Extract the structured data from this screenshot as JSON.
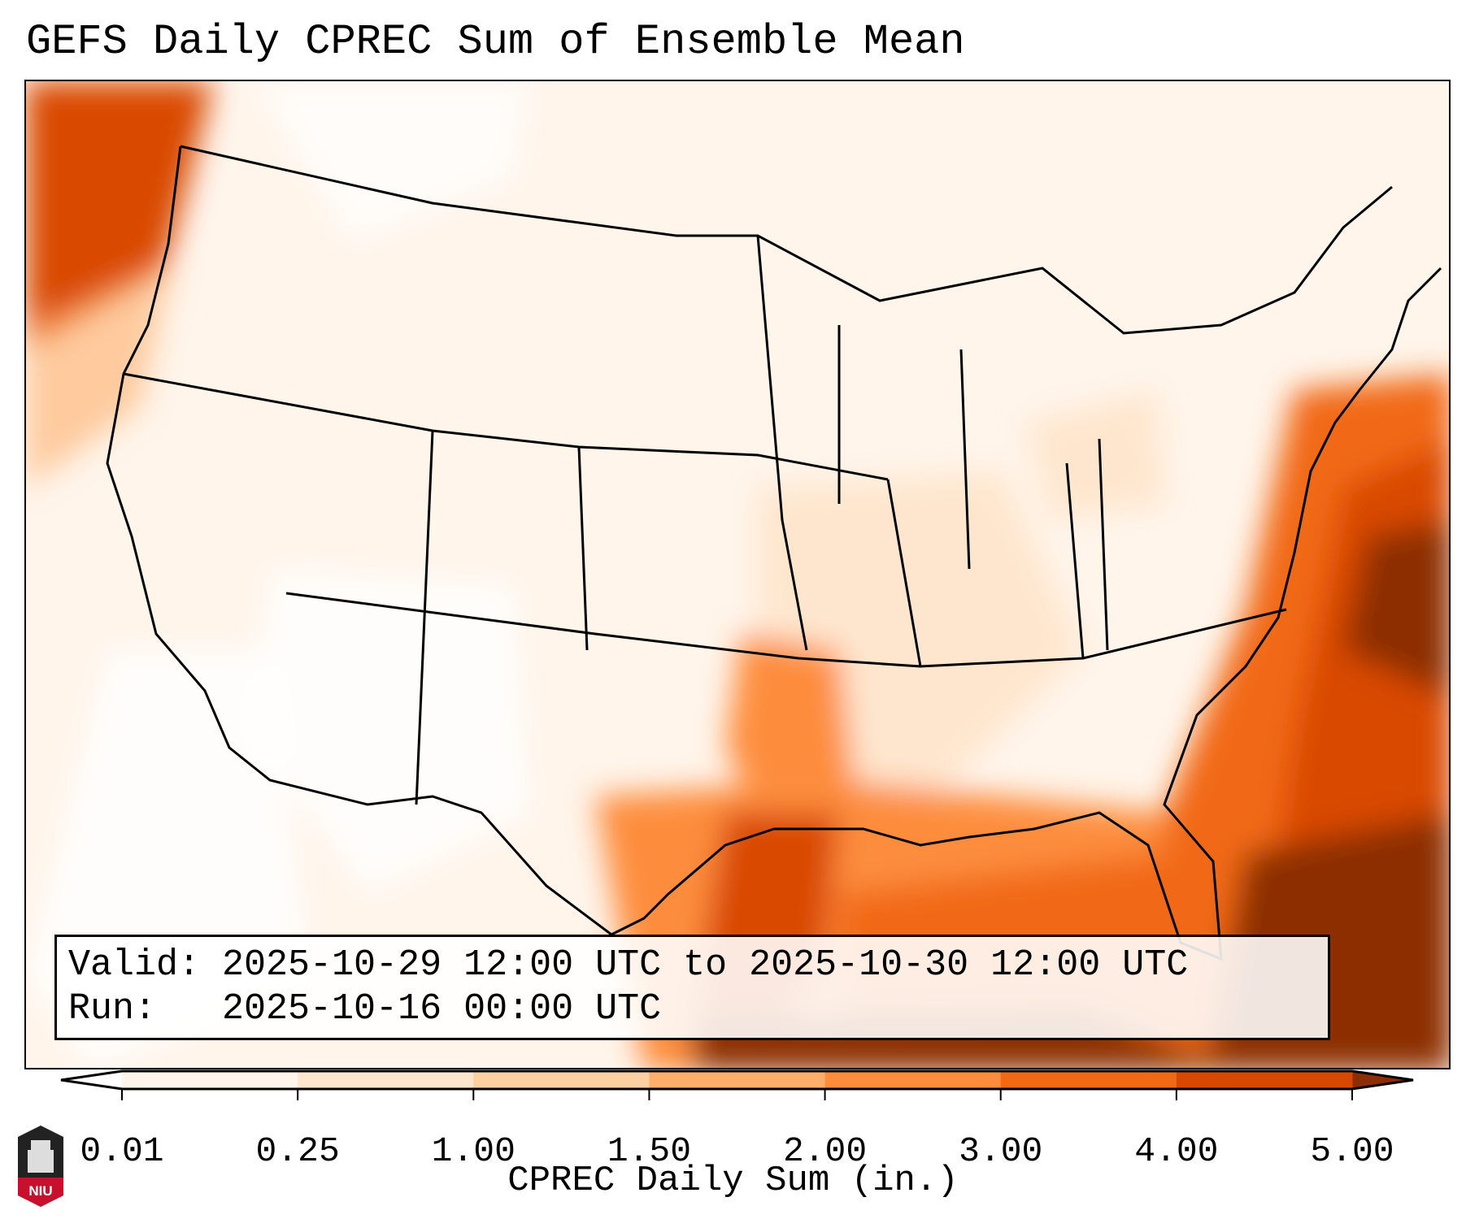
{
  "chart_data": {
    "type": "heatmap",
    "title": "GEFS Daily CPREC Sum of Ensemble Mean",
    "colorbar": {
      "label": "CPREC Daily Sum (in.)",
      "ticks": [
        "0.01",
        "0.25",
        "1.00",
        "1.50",
        "2.00",
        "3.00",
        "4.00",
        "5.00"
      ],
      "levels": [
        0.01,
        0.25,
        1.0,
        1.5,
        2.0,
        3.0,
        4.0,
        5.0
      ],
      "colors": [
        "#fff5eb",
        "#fee6ce",
        "#fdd0a2",
        "#fdae6b",
        "#fd8d3c",
        "#f16913",
        "#d94801"
      ],
      "under_color": "#ffffff",
      "over_color": "#8c2d04",
      "extend": "both"
    },
    "region": "Continental United States",
    "annotation": {
      "valid": "Valid: 2025-10-29 12:00 UTC to 2025-10-30 12:00 UTC",
      "run": "Run:   2025-10-16 00:00 UTC"
    }
  },
  "logo": {
    "text": "NIU"
  }
}
